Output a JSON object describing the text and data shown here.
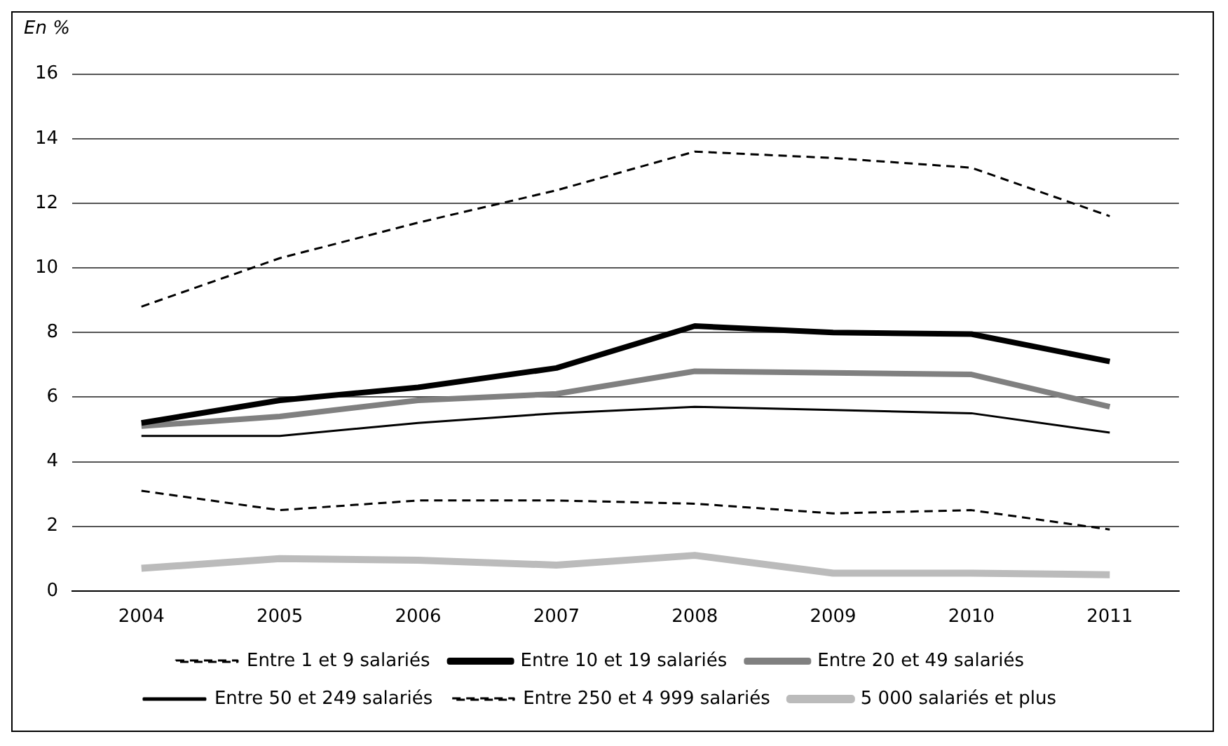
{
  "chart_data": {
    "type": "line",
    "ylabel": "En %",
    "categories": [
      "2004",
      "2005",
      "2006",
      "2007",
      "2008",
      "2009",
      "2010",
      "2011"
    ],
    "series": [
      {
        "name": "Entre 1 et 9 salariés",
        "color": "#000000",
        "line_style": "dashed",
        "values": [
          8.8,
          10.3,
          11.4,
          12.4,
          13.6,
          13.4,
          13.1,
          11.6
        ]
      },
      {
        "name": "Entre 10 et 19 salariés",
        "color": "#000000",
        "line_style": "solid",
        "values": [
          5.2,
          5.9,
          6.3,
          6.9,
          8.2,
          8.0,
          7.95,
          7.1
        ]
      },
      {
        "name": "Entre 20 et 49 salariés",
        "color": "#808080",
        "line_style": "solid",
        "values": [
          5.1,
          5.4,
          5.9,
          6.1,
          6.8,
          6.75,
          6.7,
          5.7
        ]
      },
      {
        "name": "Entre 50 et 249 salariés",
        "color": "#000000",
        "line_style": "solid",
        "values": [
          4.8,
          4.8,
          5.2,
          5.5,
          5.7,
          5.6,
          5.5,
          4.9
        ]
      },
      {
        "name": "Entre 250 et 4 999 salariés",
        "color": "#000000",
        "line_style": "dashed",
        "values": [
          3.1,
          2.5,
          2.8,
          2.8,
          2.7,
          2.4,
          2.5,
          1.9
        ]
      },
      {
        "name": "5 000 salariés et plus",
        "color": "#bbbbbb",
        "line_style": "solid",
        "values": [
          0.7,
          1.0,
          0.95,
          0.8,
          1.1,
          0.55,
          0.55,
          0.5
        ]
      }
    ],
    "ylim": [
      0,
      16
    ],
    "yticks": [
      0,
      2,
      4,
      6,
      8,
      10,
      12,
      14,
      16
    ],
    "grid": "y",
    "legend": "bottom",
    "marker": "none"
  }
}
